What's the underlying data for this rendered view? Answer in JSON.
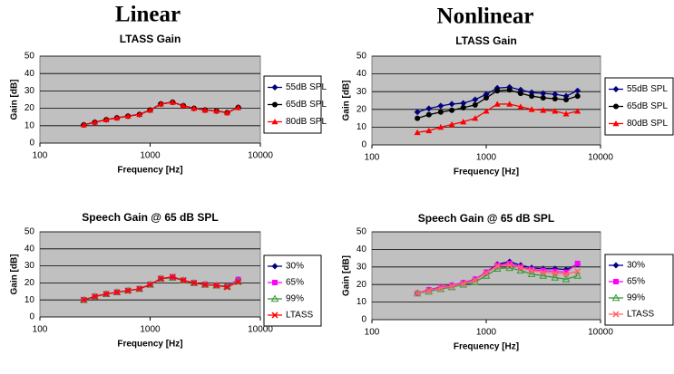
{
  "headings": [
    "Linear",
    "Nonlinear"
  ],
  "chart_data": [
    {
      "type": "line",
      "title": "LTASS Gain",
      "x_label": "Frequency [Hz]",
      "y_label": "Gain [dB]",
      "log_x": true,
      "grid": true,
      "x": [
        250,
        315,
        400,
        500,
        630,
        800,
        1000,
        1250,
        1600,
        2000,
        2500,
        3150,
        4000,
        5000,
        6300
      ],
      "xlim": [
        100,
        10000
      ],
      "xticks": [
        100,
        1000,
        10000
      ],
      "ylim": [
        0,
        50
      ],
      "yticks": [
        0,
        10,
        20,
        30,
        40,
        50
      ],
      "series": [
        {
          "name": "55dB SPL",
          "color": "#000080",
          "marker": "diamond",
          "values": [
            10.5,
            12,
            13.5,
            14.5,
            15.5,
            16.5,
            19,
            22.5,
            23.5,
            21.5,
            20,
            19,
            18.5,
            17.5,
            20.5
          ]
        },
        {
          "name": "65dB SPL",
          "color": "#000000",
          "marker": "circle",
          "values": [
            10.5,
            12,
            13.5,
            14.5,
            15.5,
            16.5,
            19,
            22.5,
            23.5,
            21.5,
            20,
            19,
            18.5,
            17.5,
            20.5
          ]
        },
        {
          "name": "80dB SPL",
          "color": "#ff0000",
          "marker": "triangle",
          "values": [
            10.5,
            12,
            13.5,
            14.5,
            15.5,
            16.5,
            19,
            22.5,
            23.5,
            21.5,
            20,
            19,
            18.5,
            17.5,
            20.5
          ]
        }
      ]
    },
    {
      "type": "line",
      "title": "LTASS Gain",
      "x_label": "Frequency [Hz]",
      "y_label": "Gain [dB]",
      "log_x": true,
      "grid": true,
      "x": [
        250,
        315,
        400,
        500,
        630,
        800,
        1000,
        1250,
        1600,
        2000,
        2500,
        3150,
        4000,
        5000,
        6300
      ],
      "xlim": [
        100,
        10000
      ],
      "xticks": [
        100,
        1000,
        10000
      ],
      "ylim": [
        0,
        50
      ],
      "yticks": [
        0,
        10,
        20,
        30,
        40,
        50
      ],
      "series": [
        {
          "name": "55dB SPL",
          "color": "#000080",
          "marker": "diamond",
          "values": [
            18.5,
            20.5,
            22,
            23,
            23.5,
            25.5,
            28.5,
            32,
            32.5,
            31,
            29.5,
            29,
            28.5,
            27.5,
            30.5
          ]
        },
        {
          "name": "65dB SPL",
          "color": "#000000",
          "marker": "circle",
          "values": [
            15,
            17,
            18.5,
            19.5,
            21,
            22.5,
            26.5,
            30.5,
            31,
            29,
            27.5,
            26.5,
            26,
            25.5,
            27.5
          ]
        },
        {
          "name": "80dB SPL",
          "color": "#ff0000",
          "marker": "triangle",
          "values": [
            7,
            8,
            10,
            11.5,
            13,
            15,
            19,
            23,
            23,
            21.5,
            20,
            19.5,
            19,
            17.5,
            19
          ]
        }
      ]
    },
    {
      "type": "line",
      "title": "Speech Gain @ 65 dB SPL",
      "x_label": "Frequency [Hz]",
      "y_label": "Gain [dB]",
      "log_x": true,
      "grid": true,
      "x": [
        250,
        315,
        400,
        500,
        630,
        800,
        1000,
        1250,
        1600,
        2000,
        2500,
        3150,
        4000,
        5000,
        6300
      ],
      "xlim": [
        100,
        10000
      ],
      "xticks": [
        100,
        1000,
        10000
      ],
      "ylim": [
        0,
        50
      ],
      "yticks": [
        0,
        10,
        20,
        30,
        40,
        50
      ],
      "series": [
        {
          "name": "30%",
          "color": "#000080",
          "marker": "diamond",
          "values": [
            10,
            12,
            13.5,
            14.5,
            15.5,
            16.5,
            19,
            22.5,
            23.5,
            21.5,
            20,
            19,
            18.5,
            18,
            22
          ]
        },
        {
          "name": "65%",
          "color": "#ff00ff",
          "marker": "square",
          "values": [
            10,
            12,
            13.5,
            14.5,
            15.5,
            16.5,
            19,
            22.5,
            23.5,
            21.5,
            20,
            19,
            18.5,
            18,
            22
          ]
        },
        {
          "name": "99%",
          "color": "#339933",
          "marker": "triangle-open",
          "values": [
            10,
            12,
            13.5,
            14.5,
            15.5,
            16.5,
            19,
            22.5,
            23,
            21.5,
            20,
            19,
            18.5,
            18,
            21
          ]
        },
        {
          "name": "LTASS",
          "color": "#ff0000",
          "marker": "x",
          "values": [
            10,
            12,
            13.5,
            14.5,
            15.5,
            16.5,
            19,
            22.5,
            23.5,
            21.5,
            20,
            19,
            18.5,
            17.5,
            20.5
          ]
        }
      ]
    },
    {
      "type": "line",
      "title": "Speech Gain @ 65 dB SPL",
      "x_label": "Frequency [Hz]",
      "y_label": "Gain [dB]",
      "log_x": true,
      "grid": true,
      "x": [
        250,
        315,
        400,
        500,
        630,
        800,
        1000,
        1250,
        1600,
        2000,
        2500,
        3150,
        4000,
        5000,
        6300
      ],
      "xlim": [
        100,
        10000
      ],
      "xticks": [
        100,
        1000,
        10000
      ],
      "ylim": [
        0,
        50
      ],
      "yticks": [
        0,
        10,
        20,
        30,
        40,
        50
      ],
      "series": [
        {
          "name": "30%",
          "color": "#000080",
          "marker": "diamond",
          "values": [
            15,
            17,
            18.5,
            19.5,
            21,
            23,
            27,
            31.5,
            33,
            31,
            29.5,
            29,
            29,
            28.5,
            31.5
          ]
        },
        {
          "name": "65%",
          "color": "#ff00ff",
          "marker": "square",
          "values": [
            15,
            17,
            18.5,
            19.5,
            21,
            23,
            27,
            31,
            32,
            30,
            28.5,
            28,
            27.5,
            27,
            32
          ]
        },
        {
          "name": "99%",
          "color": "#339933",
          "marker": "triangle-open",
          "values": [
            15,
            16,
            17.5,
            18.5,
            20,
            21.5,
            25,
            29,
            29.5,
            28,
            26,
            25,
            24,
            23,
            25
          ]
        },
        {
          "name": "LTASS",
          "color": "#ff6666",
          "marker": "x",
          "values": [
            15,
            16.5,
            18,
            19,
            20.5,
            22.5,
            26.5,
            30.5,
            31,
            29.5,
            28,
            27,
            26.5,
            26,
            27.5
          ]
        }
      ]
    }
  ]
}
